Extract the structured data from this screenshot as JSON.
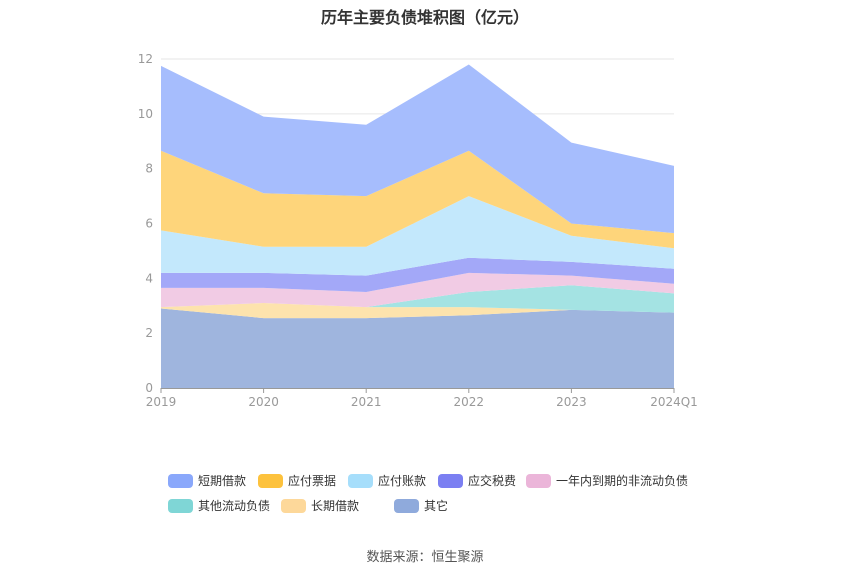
{
  "title": "历年主要负债堆积图（亿元）",
  "source": "数据来源：恒生聚源",
  "chart_data": {
    "type": "area",
    "stacked": true,
    "title": "历年主要负债堆积图（亿元）",
    "categories": [
      "2019",
      "2020",
      "2021",
      "2022",
      "2023",
      "2024Q1"
    ],
    "ylim": [
      0,
      12
    ],
    "yticks": [
      "0",
      "2",
      "4",
      "6",
      "8",
      "10",
      "12"
    ],
    "grid": true,
    "legend_position": "bottom",
    "series": [
      {
        "name": "其它",
        "color": "#9fb5de",
        "values": [
          2.9,
          2.55,
          2.55,
          2.65,
          2.85,
          2.75
        ]
      },
      {
        "name": "长期借款",
        "color": "#fde3ad",
        "values": [
          0.05,
          0.55,
          0.4,
          0.3,
          0.0,
          0.0
        ]
      },
      {
        "name": "其他流动负债",
        "color": "#a4e3e3",
        "values": [
          0.0,
          0.0,
          0.0,
          0.55,
          0.9,
          0.7
        ]
      },
      {
        "name": "一年内到期的非流动负债",
        "color": "#f1cbe4",
        "values": [
          0.7,
          0.55,
          0.55,
          0.7,
          0.35,
          0.35
        ]
      },
      {
        "name": "应交税费",
        "color": "#a3a8f8",
        "values": [
          0.55,
          0.55,
          0.6,
          0.55,
          0.5,
          0.55
        ]
      },
      {
        "name": "应付账款",
        "color": "#c3e8fc",
        "values": [
          1.55,
          0.95,
          1.05,
          2.25,
          0.95,
          0.75
        ]
      },
      {
        "name": "应付票据",
        "color": "#fed57b",
        "values": [
          2.9,
          1.95,
          1.85,
          1.65,
          0.45,
          0.55
        ]
      },
      {
        "name": "短期借款",
        "color": "#a6bdfd",
        "values": [
          3.1,
          2.8,
          2.6,
          3.15,
          2.95,
          2.45
        ]
      }
    ],
    "legend_order": [
      "短期借款",
      "应付票据",
      "应付账款",
      "应交税费",
      "一年内到期的非流动负债",
      "其他流动负债",
      "长期借款",
      "其它"
    ],
    "legend_colors": {
      "短期借款": "#8aa8fb",
      "应付票据": "#fdc23d",
      "应付账款": "#a6defb",
      "应交税费": "#7b7ff2",
      "一年内到期的非流动负债": "#ebb5d9",
      "其他流动负债": "#7fd6d6",
      "长期借款": "#fdd89a",
      "其它": "#8faadc"
    }
  }
}
